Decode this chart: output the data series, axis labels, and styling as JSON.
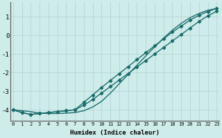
{
  "xlabel": "Humidex (Indice chaleur)",
  "ylabel": "",
  "background_color": "#ceecea",
  "grid_color": "#b8d8d5",
  "line_color": "#1a6b6b",
  "x_values": [
    0,
    1,
    2,
    3,
    4,
    5,
    6,
    7,
    8,
    9,
    10,
    11,
    12,
    13,
    14,
    15,
    16,
    17,
    18,
    19,
    20,
    21,
    22,
    23
  ],
  "line1_y": [
    -4.0,
    -4.15,
    -4.25,
    -4.2,
    -4.15,
    -4.1,
    -4.05,
    -4.0,
    -3.75,
    -3.45,
    -3.1,
    -2.75,
    -2.4,
    -2.05,
    -1.7,
    -1.35,
    -1.0,
    -0.65,
    -0.3,
    0.05,
    0.4,
    0.75,
    1.05,
    1.3
  ],
  "line2_y": [
    -4.0,
    -4.15,
    -4.25,
    -4.2,
    -4.15,
    -4.1,
    -4.05,
    -4.0,
    -3.6,
    -3.2,
    -2.8,
    -2.42,
    -2.05,
    -1.68,
    -1.3,
    -0.93,
    -0.56,
    -0.19,
    0.18,
    0.5,
    0.82,
    1.08,
    1.28,
    1.45
  ],
  "line3_y": [
    -4.0,
    -4.05,
    -4.1,
    -4.18,
    -4.2,
    -4.2,
    -4.18,
    -4.15,
    -4.05,
    -3.85,
    -3.55,
    -3.1,
    -2.6,
    -2.1,
    -1.6,
    -1.1,
    -0.62,
    -0.15,
    0.28,
    0.65,
    0.95,
    1.18,
    1.35,
    1.45
  ],
  "ylim": [
    -4.6,
    1.8
  ],
  "xlim": [
    -0.3,
    23.3
  ],
  "yticks": [
    -4,
    -3,
    -2,
    -1,
    0,
    1
  ],
  "xticks": [
    0,
    1,
    2,
    3,
    4,
    5,
    6,
    7,
    8,
    9,
    10,
    11,
    12,
    13,
    14,
    15,
    16,
    17,
    18,
    19,
    20,
    21,
    22,
    23
  ],
  "marker": "D",
  "marker_size": 2.2,
  "linewidth": 1.0
}
